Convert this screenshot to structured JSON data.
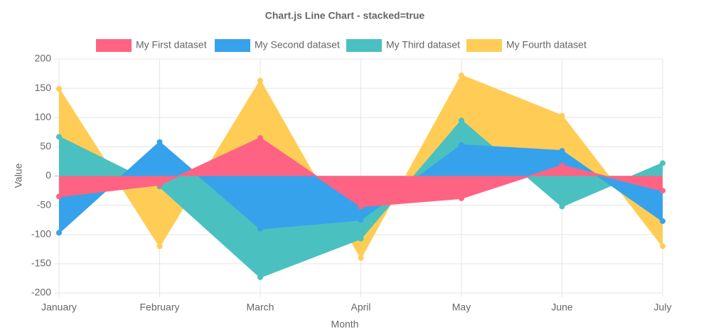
{
  "chart_data": {
    "type": "line",
    "title": "Chart.js Line Chart - stacked=true",
    "stacked": true,
    "x_label": "Month",
    "y_label": "Value",
    "categories": [
      "January",
      "February",
      "March",
      "April",
      "May",
      "June",
      "July"
    ],
    "series": [
      {
        "name": "My First dataset",
        "color": "#ff6384",
        "values": [
          -35,
          -15,
          65,
          -52,
          -38,
          18,
          -25
        ]
      },
      {
        "name": "My Second dataset",
        "color": "#36a2eb",
        "values": [
          -62,
          58,
          -90,
          -23,
          53,
          25,
          -52
        ]
      },
      {
        "name": "My Third dataset",
        "color": "#4bc0c0",
        "values": [
          67,
          -3,
          -83,
          -32,
          42,
          -52,
          22
        ]
      },
      {
        "name": "My Fourth dataset",
        "color": "#ffcd56",
        "values": [
          82,
          -102,
          98,
          -33,
          77,
          60,
          -43
        ]
      }
    ],
    "ylim": [
      -200,
      200
    ],
    "yticks": [
      -200,
      -150,
      -100,
      -50,
      0,
      50,
      100,
      150,
      200
    ],
    "grid": true,
    "legend": "top"
  }
}
